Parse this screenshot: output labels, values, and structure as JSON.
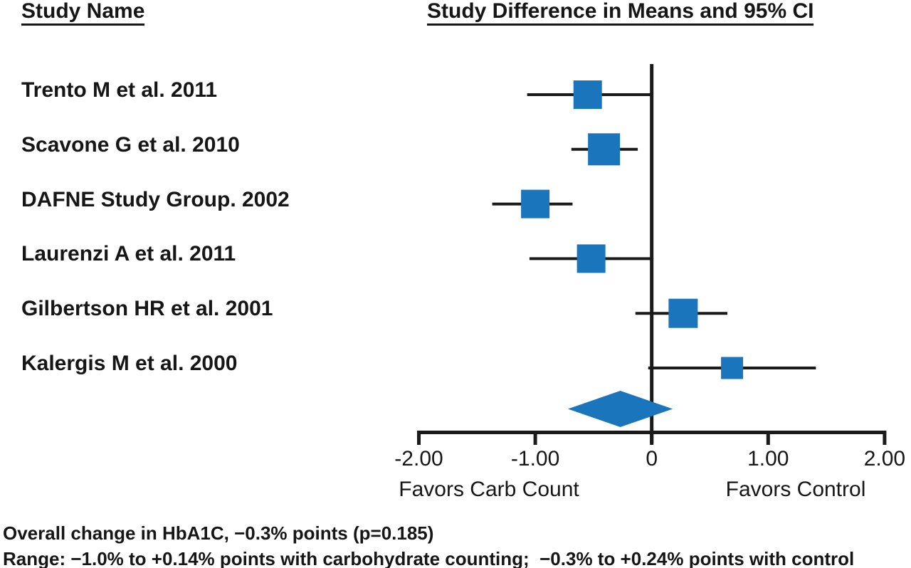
{
  "header": {
    "left_title": "Study Name",
    "right_title": "Study Difference in Means and 95% CI"
  },
  "chart_data": {
    "type": "scatter",
    "subtype": "forest-plot",
    "title": "Study Difference in Means and 95% CI",
    "x_axis": {
      "range": [
        -2.0,
        2.0
      ],
      "tick_values": [
        -2,
        -1,
        0,
        1,
        2
      ],
      "tick_labels": [
        "-2.00",
        "-1.00",
        "0",
        "1.00",
        "2.00"
      ],
      "left_direction_label": "Favors Carb Count",
      "right_direction_label": "Favors Control",
      "grid": false
    },
    "studies": [
      {
        "label": "Trento M et al. 2011",
        "mean": -0.55,
        "ci_low": -1.07,
        "ci_high": 0.01,
        "marker_px": 40
      },
      {
        "label": "Scavone G et al. 2010",
        "mean": -0.41,
        "ci_low": -0.69,
        "ci_high": -0.12,
        "marker_px": 45
      },
      {
        "label": "DAFNE Study Group. 2002",
        "mean": -1.0,
        "ci_low": -1.37,
        "ci_high": -0.68,
        "marker_px": 40
      },
      {
        "label": "Laurenzi A et al. 2011",
        "mean": -0.52,
        "ci_low": -1.05,
        "ci_high": 0.0,
        "marker_px": 40
      },
      {
        "label": "Gilbertson HR et al. 2001",
        "mean": 0.27,
        "ci_low": -0.14,
        "ci_high": 0.65,
        "marker_px": 41
      },
      {
        "label": "Kalergis M et al. 2000",
        "mean": 0.69,
        "ci_low": -0.03,
        "ci_high": 1.41,
        "marker_px": 31
      }
    ],
    "overall": {
      "label": "Overall",
      "mean": -0.27,
      "ci_low": -0.72,
      "ci_high": 0.18
    }
  },
  "footnotes": [
    "Overall change in HbA1C, −0.3% points (p=0.185)",
    "Range: −1.0% to +0.14% points with carbohydrate counting;  −0.3% to +0.24% points with control"
  ],
  "colors": {
    "marker_blue": "#1B75BC",
    "line_black": "#1A1A1A",
    "text_black": "#161616"
  }
}
